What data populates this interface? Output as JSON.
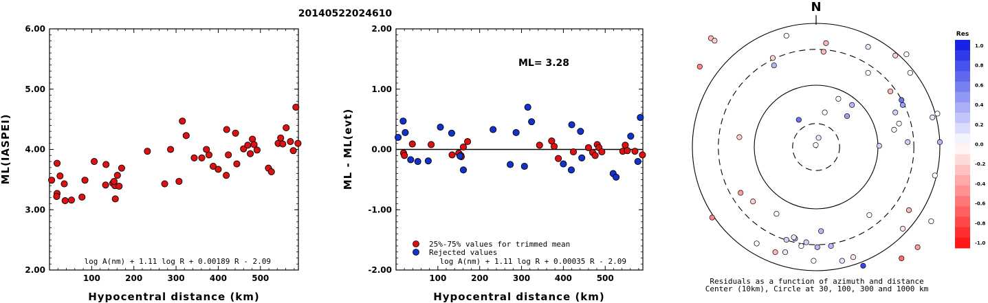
{
  "figure": {
    "title": "20140522024610"
  },
  "chart_data": [
    {
      "type": "scatter",
      "xlabel": "Hypocentral distance (km)",
      "ylabel": "ML(IASPEI)",
      "xlim": [
        0,
        590
      ],
      "ylim": [
        2.0,
        6.0
      ],
      "xticks": [
        "100",
        "200",
        "300",
        "400",
        "500"
      ],
      "yticks": [
        "2.00",
        "3.00",
        "4.00",
        "5.00",
        "6.00"
      ],
      "formula": "log A(nm) + 1.11 log R + 0.00189 R - 2.09",
      "series": [
        {
          "color": "#dd1111",
          "points": [
            [
              5,
              3.49
            ],
            [
              18,
              3.77
            ],
            [
              18,
              3.27
            ],
            [
              17,
              3.22
            ],
            [
              25,
              3.56
            ],
            [
              35,
              3.43
            ],
            [
              37,
              3.15
            ],
            [
              52,
              3.16
            ],
            [
              77,
              3.21
            ],
            [
              84,
              3.49
            ],
            [
              106,
              3.8
            ],
            [
              134,
              3.75
            ],
            [
              133,
              3.41
            ],
            [
              150,
              3.44
            ],
            [
              155,
              3.4
            ],
            [
              153,
              3.47
            ],
            [
              156,
              3.18
            ],
            [
              161,
              3.57
            ],
            [
              165,
              3.39
            ],
            [
              171,
              3.69
            ],
            [
              232,
              3.97
            ],
            [
              273,
              3.43
            ],
            [
              287,
              4.0
            ],
            [
              307,
              3.47
            ],
            [
              315,
              4.47
            ],
            [
              324,
              4.23
            ],
            [
              343,
              3.86
            ],
            [
              361,
              3.86
            ],
            [
              372,
              4.0
            ],
            [
              378,
              3.91
            ],
            [
              388,
              3.72
            ],
            [
              400,
              3.67
            ],
            [
              419,
              3.57
            ],
            [
              420,
              4.33
            ],
            [
              424,
              3.91
            ],
            [
              441,
              4.27
            ],
            [
              444,
              3.76
            ],
            [
              460,
              4.01
            ],
            [
              470,
              4.07
            ],
            [
              476,
              3.93
            ],
            [
              481,
              4.17
            ],
            [
              485,
              4.08
            ],
            [
              492,
              3.99
            ],
            [
              519,
              3.69
            ],
            [
              526,
              3.63
            ],
            [
              542,
              4.1
            ],
            [
              548,
              4.19
            ],
            [
              553,
              4.09
            ],
            [
              561,
              4.36
            ],
            [
              571,
              4.13
            ],
            [
              578,
              3.98
            ],
            [
              584,
              4.7
            ],
            [
              589,
              4.1
            ]
          ]
        }
      ]
    },
    {
      "type": "scatter",
      "xlabel": "Hypocentral distance (km)",
      "ylabel": "ML - ML(evt)",
      "xlim": [
        0,
        590
      ],
      "ylim": [
        -2.0,
        2.0
      ],
      "xticks": [
        "100",
        "200",
        "300",
        "400",
        "500"
      ],
      "yticks": [
        "2.00",
        "1.00",
        "0.00",
        "-1.00",
        "-2.00"
      ],
      "annotation": "ML= 3.28",
      "formula": "log A(nm) + 1.11 log R + 0.00035 R - 2.09",
      "series": [
        {
          "name": "25%-75% values for trimmed mean",
          "color": "#dd1111",
          "points": [
            [
              18,
              -0.06
            ],
            [
              20,
              -0.1
            ],
            [
              39,
              0.09
            ],
            [
              84,
              0.08
            ],
            [
              134,
              -0.09
            ],
            [
              150,
              -0.06
            ],
            [
              155,
              -0.1
            ],
            [
              156,
              -0.12
            ],
            [
              161,
              0.04
            ],
            [
              171,
              0.13
            ],
            [
              343,
              0.07
            ],
            [
              372,
              0.14
            ],
            [
              378,
              0.05
            ],
            [
              388,
              -0.15
            ],
            [
              424,
              -0.04
            ],
            [
              460,
              0.03
            ],
            [
              470,
              -0.05
            ],
            [
              476,
              -0.1
            ],
            [
              481,
              0.08
            ],
            [
              485,
              0.03
            ],
            [
              492,
              -0.04
            ],
            [
              542,
              -0.03
            ],
            [
              548,
              0.07
            ],
            [
              553,
              -0.02
            ],
            [
              571,
              -0.03
            ],
            [
              589,
              -0.09
            ]
          ]
        },
        {
          "name": "Rejected values",
          "color": "#1133cc",
          "points": [
            [
              5,
              0.2
            ],
            [
              17,
              0.47
            ],
            [
              22,
              0.28
            ],
            [
              35,
              -0.17
            ],
            [
              52,
              -0.2
            ],
            [
              77,
              -0.19
            ],
            [
              106,
              0.37
            ],
            [
              133,
              0.27
            ],
            [
              153,
              -0.11
            ],
            [
              161,
              -0.34
            ],
            [
              232,
              0.33
            ],
            [
              273,
              -0.25
            ],
            [
              287,
              0.28
            ],
            [
              307,
              -0.28
            ],
            [
              315,
              0.7
            ],
            [
              324,
              0.46
            ],
            [
              400,
              -0.24
            ],
            [
              419,
              -0.34
            ],
            [
              420,
              0.41
            ],
            [
              441,
              0.3
            ],
            [
              444,
              -0.14
            ],
            [
              519,
              -0.4
            ],
            [
              526,
              -0.46
            ],
            [
              561,
              0.22
            ],
            [
              578,
              -0.2
            ],
            [
              584,
              0.53
            ]
          ]
        }
      ]
    },
    {
      "type": "polar-scatter",
      "north_label": "N",
      "caption_line1": "Residuals as a function of azimuth and distance",
      "caption_line2": "Center (10km), Circle at 30, 100, 300 and 1000 km",
      "rings_km": [
        30,
        100,
        300,
        1000
      ],
      "colorbar": {
        "title": "Res",
        "ticks": [
          "1.0",
          "0.8",
          "0.6",
          "0.4",
          "0.2",
          "0.0",
          "-0.2",
          "-0.4",
          "-0.6",
          "-0.8",
          "-1.0"
        ],
        "max_color": "#0a17e6",
        "zero_color": "#ffffff",
        "min_color": "#ff0a0a"
      },
      "points_unit_disk": [
        [
          -0.003,
          0.016,
          0.0
        ],
        [
          0.02,
          0.075,
          0.1
        ],
        [
          -0.14,
          0.22,
          0.6
        ],
        [
          0.25,
          0.25,
          0.4
        ],
        [
          0.07,
          0.28,
          0.0
        ],
        [
          0.29,
          0.34,
          0.3
        ],
        [
          0.18,
          0.39,
          0.0
        ],
        [
          0.06,
          0.77,
          -0.3
        ],
        [
          0.08,
          0.84,
          -0.3
        ],
        [
          -0.24,
          0.9,
          0.0
        ],
        [
          -0.94,
          0.65,
          -0.5
        ],
        [
          -0.85,
          0.88,
          -0.3
        ],
        [
          -0.82,
          0.86,
          -0.2
        ],
        [
          -0.84,
          -0.57,
          -0.5
        ],
        [
          -0.51,
          -0.44,
          -0.2
        ],
        [
          -0.61,
          -0.37,
          -0.4
        ],
        [
          -0.62,
          0.08,
          -0.2
        ],
        [
          -0.32,
          -0.54,
          0.0
        ],
        [
          -0.48,
          -0.78,
          0.0
        ],
        [
          -0.33,
          -0.85,
          -0.3
        ],
        [
          -0.25,
          -0.85,
          0.1
        ],
        [
          -0.24,
          -0.75,
          0.2
        ],
        [
          -0.17,
          -0.74,
          0.3
        ],
        [
          -0.18,
          -0.73,
          0.1
        ],
        [
          -0.12,
          -0.8,
          0.0
        ],
        [
          -0.08,
          -0.77,
          0.2
        ],
        [
          -0.02,
          -0.92,
          0.0
        ],
        [
          0.01,
          -0.81,
          0.3
        ],
        [
          0.04,
          -0.68,
          0.3
        ],
        [
          0.12,
          -0.8,
          0.3
        ],
        [
          0.21,
          -0.92,
          0.1
        ],
        [
          0.3,
          -0.89,
          -0.1
        ],
        [
          0.38,
          -0.96,
          0.8
        ],
        [
          0.43,
          -0.55,
          0.0
        ],
        [
          0.69,
          -0.9,
          -0.6
        ],
        [
          0.82,
          -0.81,
          -0.4
        ],
        [
          0.7,
          -0.66,
          -0.1
        ],
        [
          0.93,
          -0.6,
          0.0
        ],
        [
          0.96,
          -0.23,
          0.0
        ],
        [
          0.75,
          -0.51,
          -0.3
        ],
        [
          0.94,
          0.24,
          0.1
        ],
        [
          0.98,
          0.27,
          0.0
        ],
        [
          0.7,
          0.34,
          0.4
        ],
        [
          0.67,
          0.19,
          0.0
        ],
        [
          0.74,
          0.04,
          0.2
        ],
        [
          1.0,
          0.04,
          0.3
        ],
        [
          0.63,
          0.14,
          0.0
        ],
        [
          0.51,
          0.01,
          0.2
        ],
        [
          0.64,
          0.28,
          0.2
        ],
        [
          0.69,
          0.38,
          0.6
        ],
        [
          0.6,
          0.45,
          -0.3
        ],
        [
          0.64,
          0.74,
          -0.2
        ],
        [
          0.76,
          0.6,
          0.0
        ],
        [
          0.73,
          0.75,
          0.0
        ],
        [
          0.42,
          0.81,
          0.1
        ],
        [
          0.42,
          0.6,
          0.0
        ],
        [
          -0.34,
          0.66,
          0.3
        ],
        [
          -0.35,
          0.72,
          -0.2
        ]
      ]
    }
  ]
}
